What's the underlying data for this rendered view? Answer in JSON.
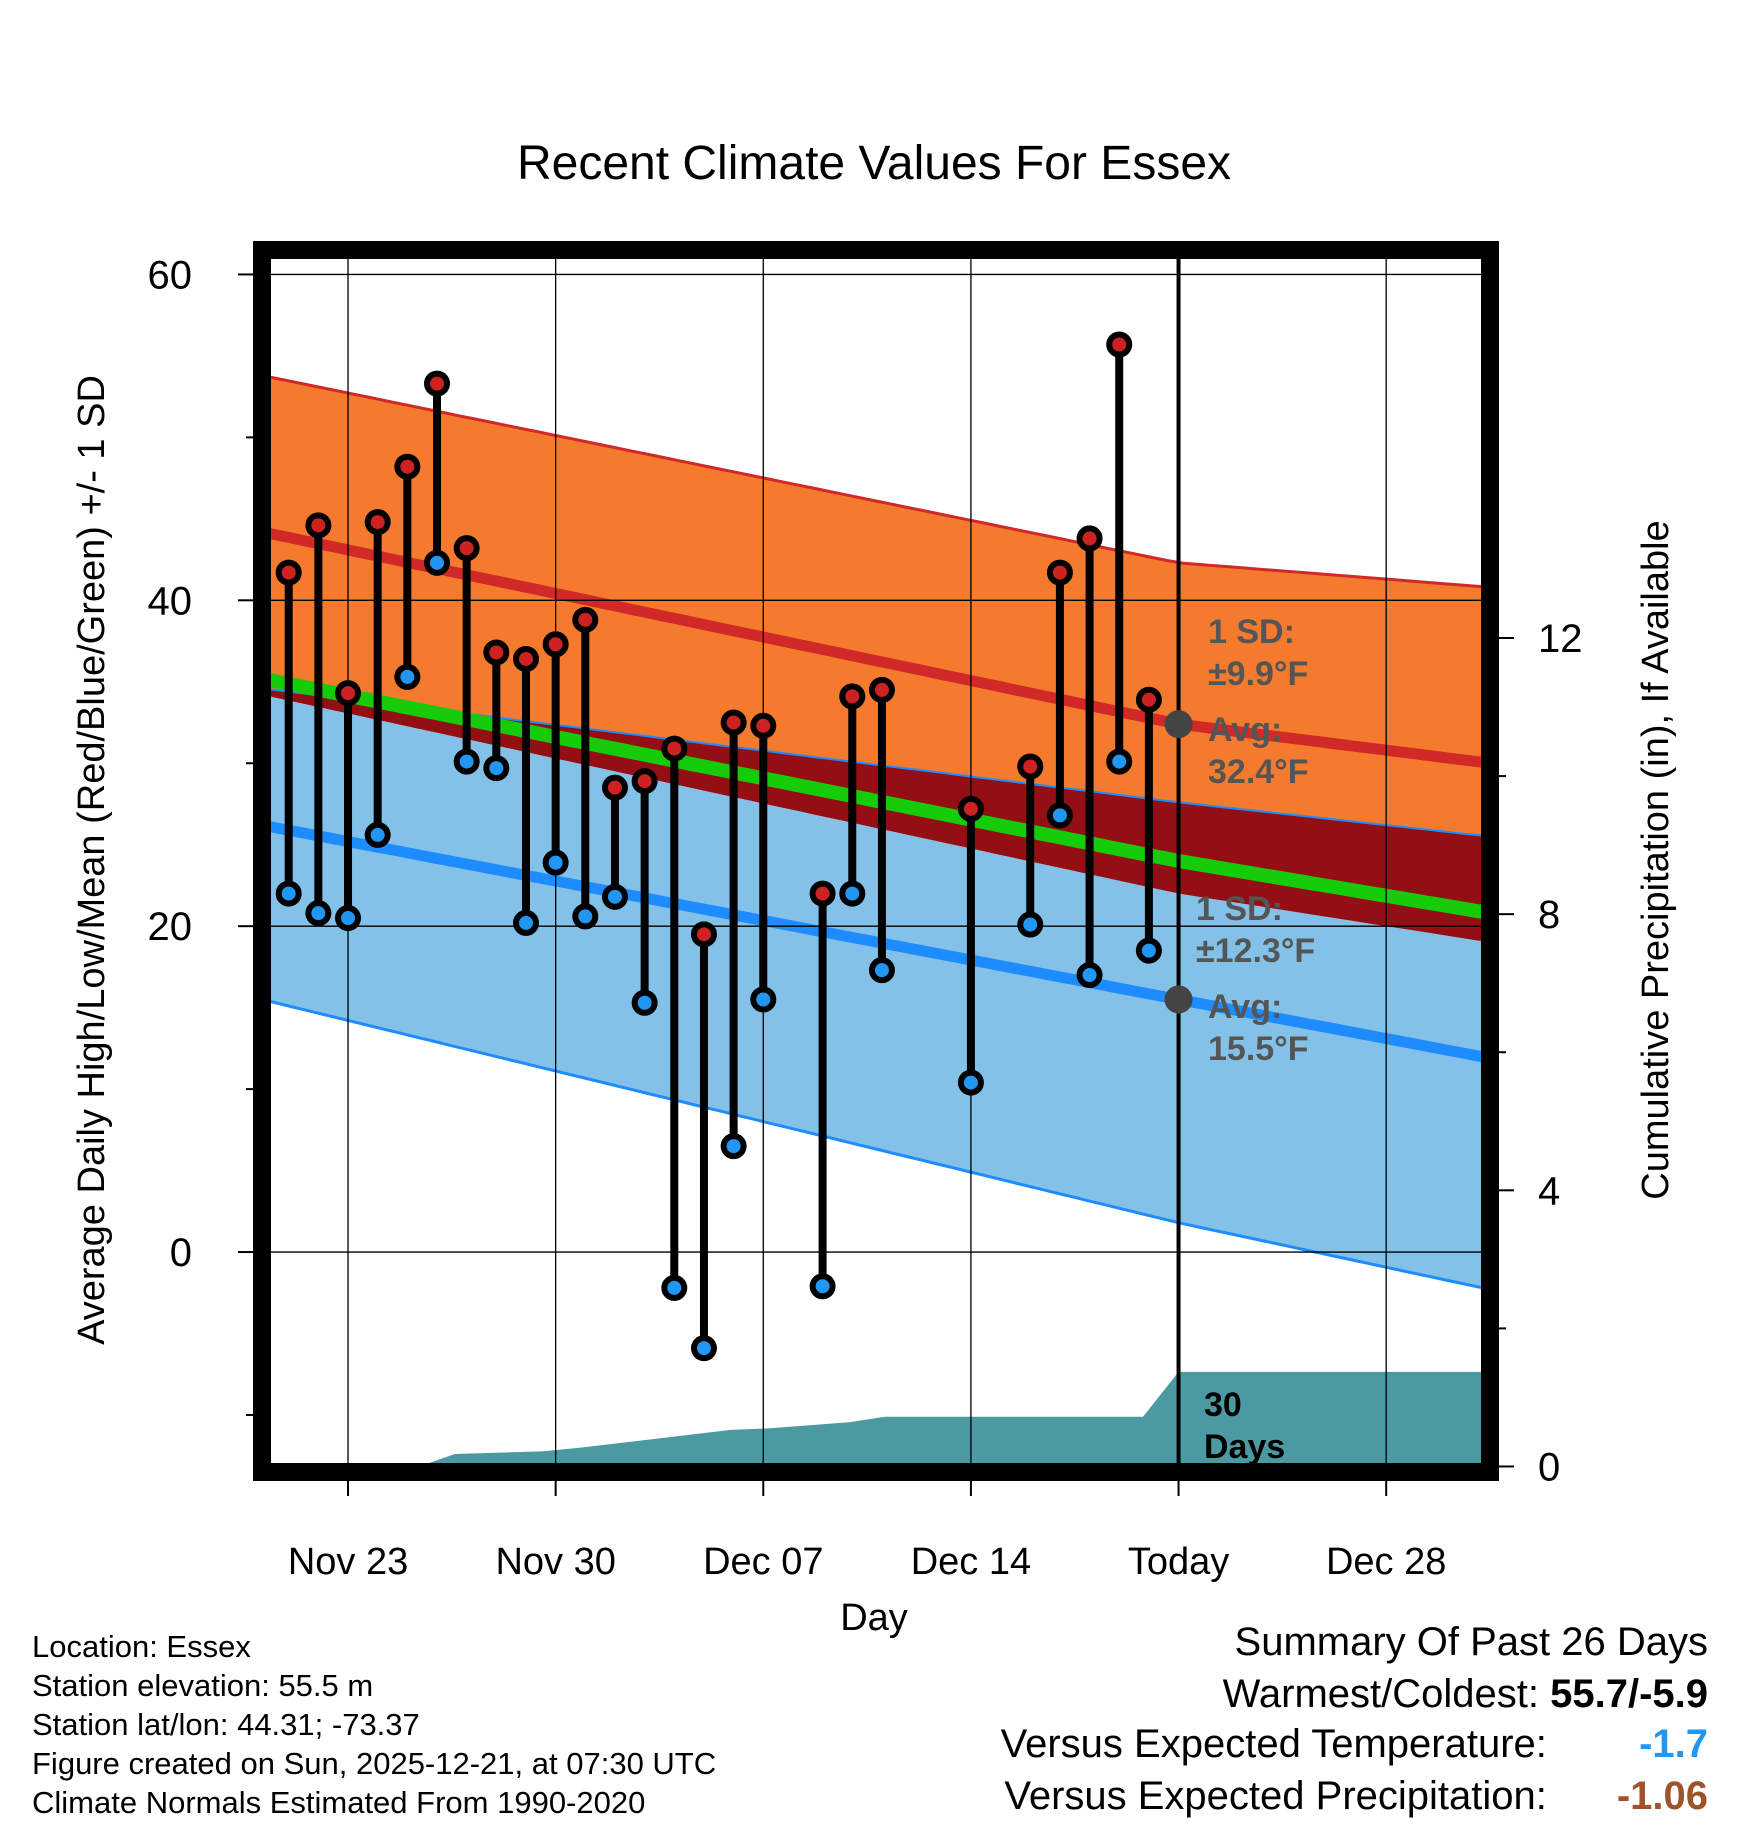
{
  "chart_data": {
    "type": "line",
    "title": "Recent Climate Values For Essex",
    "xlabel": "Day",
    "ylabel": "Average Daily High/Low/Mean (Red/Blue/Green) +/- 1 SD",
    "y2label": "Cumulative Precipitation (in), If Available",
    "ylim": [
      -13.5,
      61.5
    ],
    "y2lim": [
      -0.08,
      17.62
    ],
    "xlim": [
      -2.9,
      38.5
    ],
    "yticks": [
      60,
      40,
      20,
      0
    ],
    "y2ticks": [
      12,
      8,
      4,
      0
    ],
    "xticks": [
      {
        "day": 0,
        "label": "Nov 23"
      },
      {
        "day": 7,
        "label": "Nov 30"
      },
      {
        "day": 14,
        "label": "Dec 07"
      },
      {
        "day": 21,
        "label": "Dec 14"
      },
      {
        "day": 28,
        "label": "Today"
      },
      {
        "day": 35,
        "label": "Dec 28"
      }
    ],
    "today_day": 28,
    "normals": {
      "day": [
        -2.9,
        28,
        38.5
      ],
      "high_mean": [
        44.2,
        32.4,
        30.0
      ],
      "high_upper": [
        53.8,
        42.3,
        40.8
      ],
      "high_lower": [
        34.6,
        27.6,
        25.5
      ],
      "mean": [
        35.2,
        24.0,
        20.8
      ],
      "low_mean": [
        26.2,
        15.5,
        11.9
      ],
      "low_upper": [
        34.2,
        22.0,
        19.0
      ],
      "low_lower": [
        15.5,
        1.8,
        -2.3
      ]
    },
    "series": [
      {
        "name": "Observed high/low",
        "day": [
          -2,
          -1,
          0,
          1,
          2,
          3,
          4,
          5,
          6,
          7,
          8,
          9,
          10,
          11,
          12,
          13,
          14,
          16,
          17,
          18,
          21,
          23,
          24,
          25,
          26,
          27
        ],
        "high": [
          41.7,
          44.6,
          34.3,
          44.8,
          48.2,
          53.3,
          43.2,
          36.8,
          36.4,
          37.3,
          38.8,
          28.5,
          28.9,
          30.9,
          19.5,
          32.5,
          32.3,
          22.0,
          34.1,
          34.5,
          27.2,
          29.8,
          41.7,
          43.8,
          55.7,
          33.9
        ],
        "low": [
          22.0,
          20.8,
          20.5,
          25.6,
          35.3,
          42.3,
          30.1,
          29.7,
          20.2,
          23.9,
          20.6,
          21.8,
          15.3,
          -2.2,
          -5.9,
          6.5,
          15.5,
          -2.1,
          22.0,
          17.3,
          10.4,
          20.1,
          26.8,
          17.0,
          30.1,
          18.5
        ]
      }
    ],
    "precipitation": {
      "day": [
        -2.9,
        2.4,
        3.6,
        6.6,
        7.8,
        12.9,
        14.1,
        16.9,
        18.1,
        26.8,
        28.0,
        38.5
      ],
      "cumulative": [
        0.0,
        0.0,
        0.18,
        0.22,
        0.27,
        0.53,
        0.55,
        0.64,
        0.72,
        0.72,
        1.37,
        1.37
      ]
    },
    "annotations": {
      "high_sd": {
        "line1": "1 SD:",
        "line2": "±9.9°F"
      },
      "high_avg": {
        "line1": "Avg:",
        "line2": "32.4°F"
      },
      "low_sd": {
        "line1": "1 SD:",
        "line2": "±12.3°F"
      },
      "low_avg": {
        "line1": "Avg:",
        "line2": "15.5°F"
      },
      "days": {
        "line1": "30",
        "line2": "Days"
      }
    },
    "colors": {
      "high_band": "#f47a2e",
      "high_line": "#d12828",
      "low_band": "#83c1e8",
      "low_line": "#1e8cff",
      "overlap": "#930f13",
      "mean": "#16cc0a",
      "precip": "#4b9aa2",
      "high_dot": "#cc2222",
      "low_dot": "#2196f3",
      "annotation": "#555555"
    }
  },
  "info": {
    "location": "Location: Essex",
    "elevation": "Station elevation: 55.5 m",
    "latlon": "Station lat/lon: 44.31; -73.37",
    "created": "Figure created on Sun, 2025-12-21, at 07:30 UTC",
    "normals": "Climate Normals Estimated From 1990-2020"
  },
  "summary": {
    "title": "Summary Of Past 26 Days",
    "warmest_label": "Warmest/Coldest:",
    "warmest_value": "55.7/-5.9",
    "temp_label": "Versus Expected Temperature:",
    "temp_value": "-1.7",
    "temp_color": "#2196f3",
    "precip_label": "Versus Expected Precipitation:",
    "precip_value": "-1.06",
    "precip_color": "#a0522d"
  }
}
